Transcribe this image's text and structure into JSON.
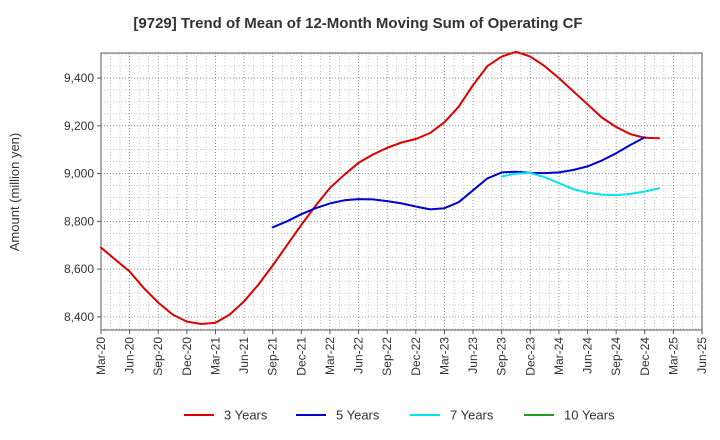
{
  "chart_data": {
    "type": "line",
    "title": "[9729]  Trend of Mean of 12-Month Moving Sum of Operating CF",
    "xlabel": "",
    "ylabel": "Amount (million yen)",
    "x_ticks": [
      "Mar-20",
      "Jun-20",
      "Sep-20",
      "Dec-20",
      "Mar-21",
      "Jun-21",
      "Sep-21",
      "Dec-21",
      "Mar-22",
      "Jun-22",
      "Sep-22",
      "Dec-22",
      "Mar-23",
      "Jun-23",
      "Sep-23",
      "Dec-23",
      "Mar-24",
      "Jun-24",
      "Sep-24",
      "Dec-24",
      "Mar-25",
      "Jun-25"
    ],
    "y_ticks": [
      8400,
      8600,
      8800,
      9000,
      9200,
      9400
    ],
    "y_tick_labels": [
      "8,400",
      "8,600",
      "8,800",
      "9,000",
      "9,200",
      "9,400"
    ],
    "ylim": [
      8345,
      9505
    ],
    "grid": true,
    "legend_position": "bottom",
    "series": [
      {
        "name": "3 Years",
        "color": "#dd0000",
        "points": [
          [
            0,
            8690
          ],
          [
            0.5,
            8640
          ],
          [
            1,
            8590
          ],
          [
            1.5,
            8520
          ],
          [
            2,
            8460
          ],
          [
            2.5,
            8410
          ],
          [
            3,
            8380
          ],
          [
            3.5,
            8370
          ],
          [
            4,
            8375
          ],
          [
            4.5,
            8410
          ],
          [
            5,
            8465
          ],
          [
            5.5,
            8535
          ],
          [
            6,
            8615
          ],
          [
            6.5,
            8700
          ],
          [
            7,
            8785
          ],
          [
            7.5,
            8865
          ],
          [
            8,
            8940
          ],
          [
            8.5,
            8995
          ],
          [
            9,
            9045
          ],
          [
            9.5,
            9080
          ],
          [
            10,
            9108
          ],
          [
            10.5,
            9130
          ],
          [
            11,
            9145
          ],
          [
            11.5,
            9170
          ],
          [
            12,
            9215
          ],
          [
            12.5,
            9280
          ],
          [
            13,
            9370
          ],
          [
            13.5,
            9450
          ],
          [
            14,
            9490
          ],
          [
            14.5,
            9510
          ],
          [
            15,
            9490
          ],
          [
            15.5,
            9450
          ],
          [
            16,
            9400
          ],
          [
            16.5,
            9345
          ],
          [
            17,
            9290
          ],
          [
            17.5,
            9235
          ],
          [
            18,
            9195
          ],
          [
            18.5,
            9165
          ],
          [
            19,
            9150
          ],
          [
            19.5,
            9148
          ]
        ]
      },
      {
        "name": "5 Years",
        "color": "#0000cc",
        "points": [
          [
            6,
            8775
          ],
          [
            6.5,
            8800
          ],
          [
            7,
            8830
          ],
          [
            7.5,
            8855
          ],
          [
            8,
            8875
          ],
          [
            8.5,
            8888
          ],
          [
            9,
            8893
          ],
          [
            9.5,
            8892
          ],
          [
            10,
            8885
          ],
          [
            10.5,
            8875
          ],
          [
            11,
            8862
          ],
          [
            11.5,
            8850
          ],
          [
            12,
            8855
          ],
          [
            12.5,
            8880
          ],
          [
            13,
            8930
          ],
          [
            13.5,
            8980
          ],
          [
            14,
            9005
          ],
          [
            14.5,
            9008
          ],
          [
            15,
            9003
          ],
          [
            15.5,
            9002
          ],
          [
            16,
            9005
          ],
          [
            16.5,
            9015
          ],
          [
            17,
            9030
          ],
          [
            17.5,
            9055
          ],
          [
            18,
            9085
          ],
          [
            18.5,
            9120
          ],
          [
            19,
            9152
          ]
        ]
      },
      {
        "name": "7 Years",
        "color": "#00e5ee",
        "points": [
          [
            14,
            8988
          ],
          [
            14.5,
            9000
          ],
          [
            15,
            9003
          ],
          [
            15.5,
            8985
          ],
          [
            16,
            8960
          ],
          [
            16.5,
            8935
          ],
          [
            17,
            8920
          ],
          [
            17.5,
            8912
          ],
          [
            18,
            8910
          ],
          [
            18.5,
            8915
          ],
          [
            19,
            8925
          ],
          [
            19.5,
            8938
          ]
        ]
      },
      {
        "name": "10 Years",
        "color": "#229922",
        "points": []
      }
    ]
  }
}
